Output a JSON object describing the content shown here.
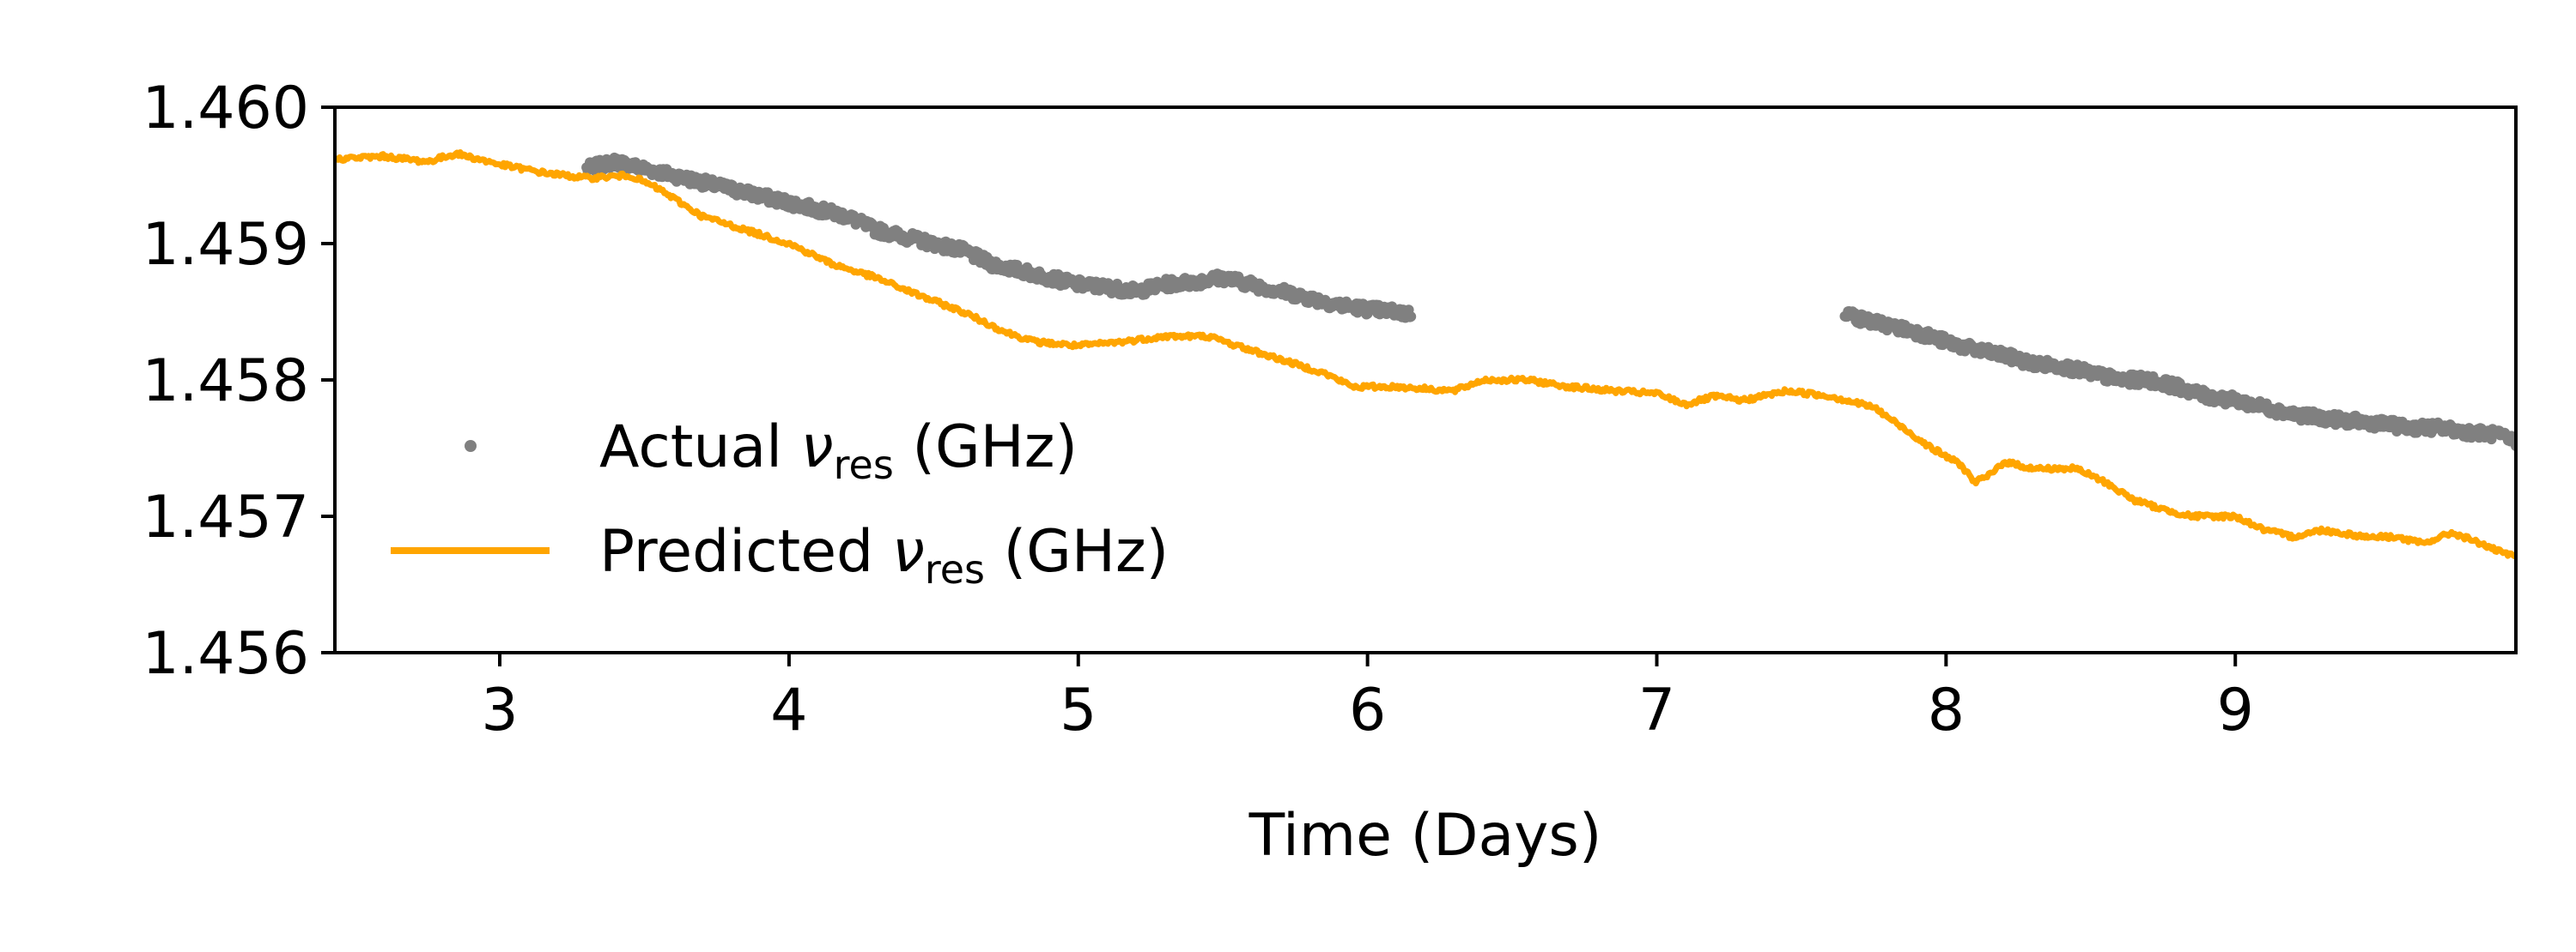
{
  "chart_data": {
    "type": "line",
    "title": "",
    "xlabel": "Time (Days)",
    "ylabel": "",
    "xlim": [
      2.43,
      9.97
    ],
    "ylim": [
      1.456,
      1.46
    ],
    "xticks": [
      3,
      4,
      5,
      6,
      7,
      8,
      9
    ],
    "xtick_labels": [
      "3",
      "4",
      "5",
      "6",
      "7",
      "8",
      "9"
    ],
    "yticks": [
      1.456,
      1.457,
      1.458,
      1.459,
      1.46
    ],
    "ytick_labels": [
      "1.456",
      "1.457",
      "1.458",
      "1.459",
      "1.460"
    ],
    "grid": false,
    "legend_position": "center-left",
    "series": [
      {
        "name": "Actual",
        "label_prefix": "Actual ",
        "symbol": "ν",
        "subscript": "res",
        "label_suffix": " (GHz)",
        "style": "scatter",
        "color": "#808080",
        "segments": [
          {
            "x": [
              3.3,
              3.4,
              3.5,
              3.6,
              3.7,
              3.8,
              3.9,
              4.0,
              4.1,
              4.2,
              4.3,
              4.4,
              4.5,
              4.6,
              4.7,
              4.8,
              4.9,
              5.0,
              5.1,
              5.2,
              5.3,
              5.4,
              5.5,
              5.6,
              5.7,
              5.8,
              5.9,
              6.0,
              6.1,
              6.15
            ],
            "y": [
              1.45955,
              1.4596,
              1.45955,
              1.4595,
              1.45945,
              1.4594,
              1.45935,
              1.4593,
              1.45925,
              1.4592,
              1.4591,
              1.45905,
              1.459,
              1.45895,
              1.45885,
              1.4588,
              1.45875,
              1.4587,
              1.45868,
              1.45865,
              1.4587,
              1.45872,
              1.45875,
              1.4587,
              1.45865,
              1.4586,
              1.45855,
              1.45852,
              1.4585,
              1.45848
            ]
          },
          {
            "x": [
              7.65,
              7.7,
              7.8,
              7.9,
              8.0,
              8.1,
              8.2,
              8.3,
              8.4,
              8.5,
              8.6,
              8.7,
              8.8,
              8.9,
              9.0,
              9.1,
              9.2,
              9.3,
              9.4,
              9.5,
              9.6,
              9.7,
              9.8,
              9.9,
              9.97
            ],
            "y": [
              1.4585,
              1.45845,
              1.4584,
              1.45835,
              1.45828,
              1.45822,
              1.45818,
              1.45812,
              1.4581,
              1.45805,
              1.458,
              1.458,
              1.45795,
              1.45788,
              1.45785,
              1.4578,
              1.45775,
              1.45772,
              1.4577,
              1.45768,
              1.45765,
              1.45765,
              1.45762,
              1.4576,
              1.45755
            ]
          }
        ]
      },
      {
        "name": "Predicted",
        "label_prefix": "Predicted ",
        "symbol": "ν",
        "subscript": "res",
        "label_suffix": " (GHz)",
        "style": "line",
        "color": "#ffa500",
        "x": [
          2.43,
          2.6,
          2.75,
          2.85,
          3.0,
          3.15,
          3.3,
          3.45,
          3.55,
          3.7,
          3.85,
          4.0,
          4.15,
          4.3,
          4.45,
          4.6,
          4.75,
          4.85,
          5.0,
          5.15,
          5.3,
          5.45,
          5.55,
          5.7,
          5.85,
          5.95,
          6.1,
          6.3,
          6.4,
          6.55,
          6.7,
          6.85,
          7.0,
          7.1,
          7.2,
          7.3,
          7.45,
          7.6,
          7.75,
          7.85,
          7.95,
          8.05,
          8.1,
          8.15,
          8.2,
          8.3,
          8.45,
          8.55,
          8.65,
          8.75,
          8.85,
          9.0,
          9.1,
          9.2,
          9.3,
          9.45,
          9.55,
          9.65,
          9.75,
          9.85,
          9.9,
          9.97
        ],
        "y": [
          1.45962,
          1.45964,
          1.4596,
          1.45966,
          1.45958,
          1.45952,
          1.45948,
          1.4595,
          1.4594,
          1.4592,
          1.4591,
          1.459,
          1.45885,
          1.45875,
          1.45862,
          1.4585,
          1.45835,
          1.45828,
          1.45825,
          1.45828,
          1.45832,
          1.45832,
          1.45825,
          1.45815,
          1.45805,
          1.45795,
          1.45795,
          1.45792,
          1.458,
          1.458,
          1.45795,
          1.45792,
          1.4579,
          1.45782,
          1.45788,
          1.45785,
          1.45792,
          1.45788,
          1.4578,
          1.45765,
          1.4575,
          1.45738,
          1.45725,
          1.4573,
          1.4574,
          1.45735,
          1.45735,
          1.45725,
          1.45712,
          1.45705,
          1.457,
          1.457,
          1.4569,
          1.45685,
          1.4569,
          1.45685,
          1.45685,
          1.4568,
          1.45688,
          1.4568,
          1.45675,
          1.4567
        ]
      }
    ]
  }
}
